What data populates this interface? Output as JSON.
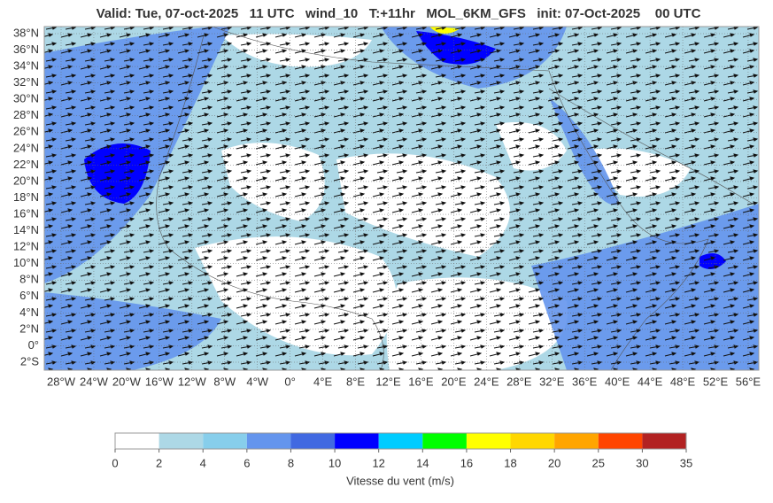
{
  "header": {
    "title": "Valid: Tue, 07-oct-2025   11 UTC   wind_10   T:+11hr   MOL_6KM_GFS   init: 07-Oct-2025    00 UTC"
  },
  "map": {
    "lat_labels": [
      "38°N",
      "36°N",
      "34°N",
      "32°N",
      "30°N",
      "28°N",
      "26°N",
      "24°N",
      "22°N",
      "20°N",
      "18°N",
      "16°N",
      "14°N",
      "12°N",
      "10°N",
      "8°N",
      "6°N",
      "4°N",
      "2°N",
      "0°",
      "2°S"
    ],
    "lon_labels": [
      "28°W",
      "24°W",
      "20°W",
      "16°W",
      "12°W",
      "8°W",
      "4°W",
      "0°",
      "4°E",
      "8°E",
      "12°E",
      "16°E",
      "20°E",
      "24°E",
      "28°E",
      "32°E",
      "36°E",
      "40°E",
      "44°E",
      "48°E",
      "52°E",
      "56°E"
    ]
  },
  "colorbar": {
    "ticks": [
      0,
      2,
      4,
      6,
      8,
      10,
      12,
      14,
      16,
      18,
      20,
      25,
      30,
      35
    ],
    "colors": [
      "#ffffff",
      "#add8e6",
      "#87ceeb",
      "#6495ed",
      "#4169e1",
      "#0000ff",
      "#00ccff",
      "#00ff00",
      "#ffff00",
      "#ffd700",
      "#ffa500",
      "#ff4500",
      "#b22222"
    ],
    "label": "Vitesse du vent (m/s)"
  }
}
